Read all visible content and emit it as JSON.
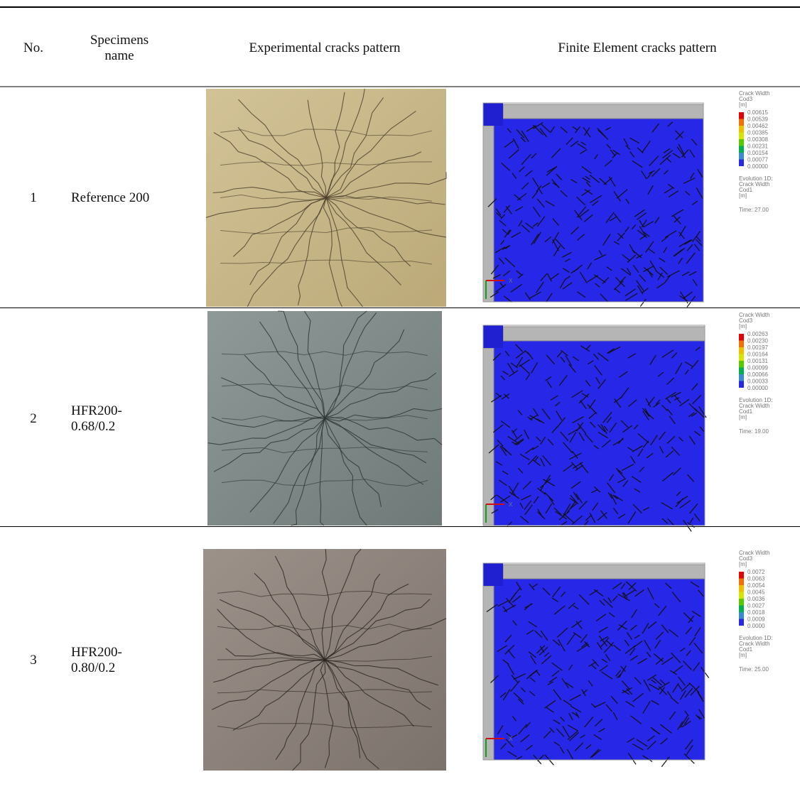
{
  "header": {
    "no": "No.",
    "specimen_name": "Specimens name",
    "experimental": "Experimental cracks pattern",
    "finite_element": "Finite Element cracks pattern"
  },
  "rows": [
    {
      "no": "1",
      "name": "Reference 200",
      "legend": {
        "title": [
          "Crack Width",
          "Cod3",
          "[m]"
        ],
        "values": [
          "0.00615",
          "0.00539",
          "0.00462",
          "0.00385",
          "0.00308",
          "0.00231",
          "0.00154",
          "0.00077",
          "0.00000"
        ],
        "evolution": [
          "Evolution 1D:",
          "Crack Width",
          "Cod1",
          "[m]"
        ],
        "time": "Time: 27.00"
      },
      "axis_label": "X"
    },
    {
      "no": "2",
      "name": "HFR200-0.68/0.2",
      "legend": {
        "title": [
          "Crack Width",
          "Cod3",
          "[m]"
        ],
        "values": [
          "0.00263",
          "0.00230",
          "0.00197",
          "0.00164",
          "0.00131",
          "0.00099",
          "0.00066",
          "0.00033",
          "0.00000"
        ],
        "evolution": [
          "Evolution 1D:",
          "Crack Width",
          "Cod1",
          "[m]"
        ],
        "time": "Time: 19.00"
      },
      "axis_label": "X"
    },
    {
      "no": "3",
      "name": "HFR200-0.80/0.2",
      "legend": {
        "title": [
          "Crack Width",
          "Cod3",
          "[m]"
        ],
        "values": [
          "0.0072",
          "0.0063",
          "0.0054",
          "0.0045",
          "0.0036",
          "0.0027",
          "0.0018",
          "0.0009",
          "0.0000"
        ],
        "evolution": [
          "Evolution 1D:",
          "Crack Width",
          "Cod1",
          "[m]"
        ],
        "time": "Time: 25.00"
      },
      "axis_label": "X"
    }
  ]
}
